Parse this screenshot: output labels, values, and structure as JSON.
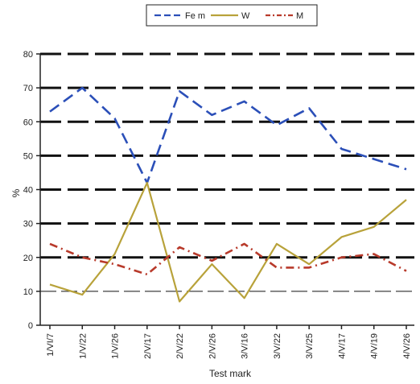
{
  "chart_data": {
    "type": "line",
    "categories": [
      "1/VI/7",
      "1/V/22",
      "1/V/26",
      "2/V/17",
      "2/V/22",
      "2/V/26",
      "3/V/16",
      "3/V/22",
      "3/V/25",
      "4/V/17",
      "4/V/19",
      "4/V/26"
    ],
    "series": [
      {
        "name": "Fe m",
        "color": "#2b4fb8",
        "dash": "dashed",
        "values": [
          63,
          70,
          61,
          42,
          69,
          62,
          66,
          59,
          64,
          52,
          49,
          46
        ]
      },
      {
        "name": "W",
        "color": "#b8a23a",
        "dash": "solid",
        "values": [
          12,
          9,
          21,
          42,
          7,
          18,
          8,
          24,
          18,
          26,
          29,
          37
        ]
      },
      {
        "name": "M",
        "color": "#b83a2b",
        "dash": "dashdot",
        "values": [
          24,
          20,
          18,
          15,
          23,
          19,
          24,
          17,
          17,
          20,
          21,
          16
        ]
      }
    ],
    "xlabel": "Test mark",
    "ylabel": "%",
    "ylim": [
      0,
      80
    ],
    "yticks": [
      0,
      10,
      20,
      30,
      40,
      50,
      60,
      70,
      80
    ],
    "grid": true,
    "legend_position": "top"
  }
}
